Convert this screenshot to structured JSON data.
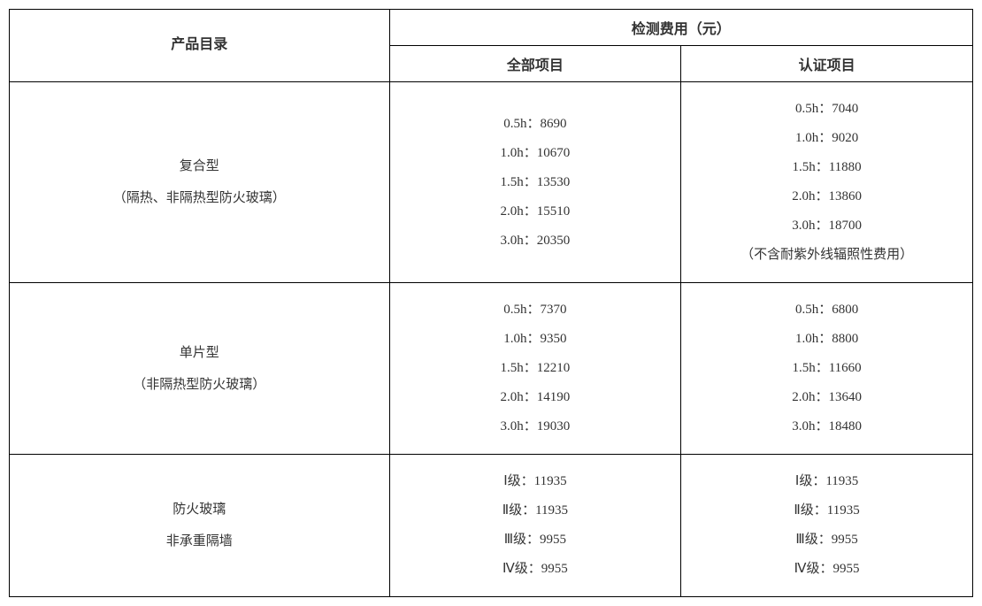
{
  "table": {
    "header": {
      "catalog": "产品目录",
      "feeGroup": "检测费用（元）",
      "allItems": "全部项目",
      "certItems": "认证项目"
    },
    "rows": [
      {
        "catalog": [
          "复合型",
          "（隔热、非隔热型防火玻璃）"
        ],
        "all": [
          "0.5h：8690",
          "1.0h：10670",
          "1.5h：13530",
          "2.0h：15510",
          "3.0h：20350"
        ],
        "cert": [
          "0.5h：7040",
          "1.0h：9020",
          "1.5h：11880",
          "2.0h：13860",
          "3.0h：18700",
          "（不含耐紫外线辐照性费用）"
        ]
      },
      {
        "catalog": [
          "单片型",
          "（非隔热型防火玻璃）"
        ],
        "all": [
          "0.5h：7370",
          "1.0h：9350",
          "1.5h：12210",
          "2.0h：14190",
          "3.0h：19030"
        ],
        "cert": [
          "0.5h：6800",
          "1.0h：8800",
          "1.5h：11660",
          "2.0h：13640",
          "3.0h：18480"
        ]
      },
      {
        "catalog": [
          "防火玻璃",
          "非承重隔墙"
        ],
        "all": [
          "Ⅰ级：11935",
          "Ⅱ级：11935",
          "Ⅲ级：9955",
          "Ⅳ级：9955"
        ],
        "cert": [
          "Ⅰ级：11935",
          "Ⅱ级：11935",
          "Ⅲ级：9955",
          "Ⅳ级：9955"
        ]
      }
    ]
  },
  "style": {
    "fontFamily": "SimSun",
    "textColor": "#333333",
    "borderColor": "#000000",
    "background": "#ffffff",
    "headerFontWeight": "bold",
    "bodyFontSize": 15,
    "headerFontSize": 16,
    "tableWidth": 1090,
    "lineHeight": 2.2
  }
}
